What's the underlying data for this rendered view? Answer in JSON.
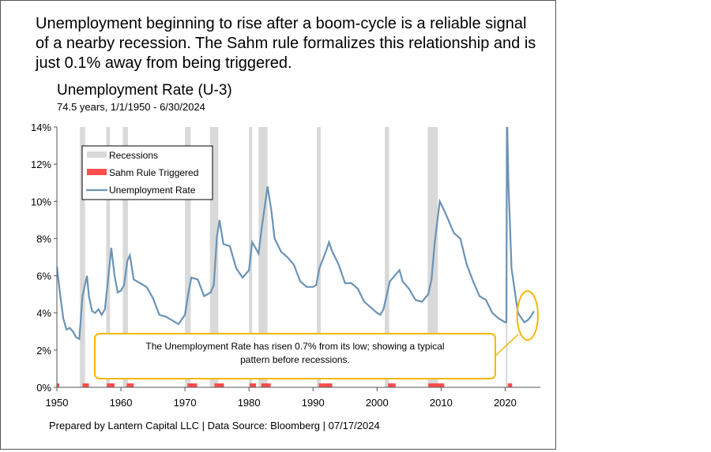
{
  "headline": "Unemployment beginning to rise after a boom-cycle is a reliable signal of a nearby recession. The Sahm rule formalizes this relationship and is just 0.1% away from being triggered.",
  "footer": "Prepared by Lantern Capital LLC | Data Source: Bloomberg | 07/17/2024",
  "colors": {
    "line": "#6b93b5",
    "recession": "#d9d9d9",
    "sahm": "#ff4d4d",
    "annotation": "#f5b800"
  },
  "chart_data": {
    "type": "line",
    "title": "Unemployment Rate (U-3)",
    "subtitle": "74.5 years, 1/1/1950 - 6/30/2024",
    "xlim": [
      1950,
      2025.5
    ],
    "ylim": [
      0,
      14
    ],
    "x_ticks": [
      "1950",
      "1960",
      "1970",
      "1980",
      "1990",
      "2000",
      "2010",
      "2020"
    ],
    "y_ticks": [
      "0%",
      "2%",
      "4%",
      "6%",
      "8%",
      "10%",
      "12%",
      "14%"
    ],
    "legend": {
      "position": "top-left",
      "items": [
        "Recessions",
        "Sahm Rule Triggered",
        "Unemployment Rate"
      ]
    },
    "series": [
      {
        "name": "Unemployment Rate",
        "points": [
          [
            1950.0,
            6.5
          ],
          [
            1950.5,
            5.0
          ],
          [
            1951,
            3.7
          ],
          [
            1951.5,
            3.1
          ],
          [
            1952,
            3.2
          ],
          [
            1952.5,
            3.0
          ],
          [
            1953,
            2.7
          ],
          [
            1953.5,
            2.6
          ],
          [
            1954,
            4.9
          ],
          [
            1954.7,
            6.0
          ],
          [
            1955,
            4.9
          ],
          [
            1955.5,
            4.1
          ],
          [
            1956,
            4.0
          ],
          [
            1956.5,
            4.2
          ],
          [
            1957,
            3.9
          ],
          [
            1957.5,
            4.2
          ],
          [
            1958,
            5.8
          ],
          [
            1958.5,
            7.5
          ],
          [
            1959,
            6.0
          ],
          [
            1959.5,
            5.1
          ],
          [
            1960,
            5.2
          ],
          [
            1960.5,
            5.5
          ],
          [
            1961,
            6.8
          ],
          [
            1961.4,
            7.1
          ],
          [
            1962,
            5.8
          ],
          [
            1963,
            5.6
          ],
          [
            1964,
            5.4
          ],
          [
            1965,
            4.8
          ],
          [
            1966,
            3.9
          ],
          [
            1967,
            3.8
          ],
          [
            1968,
            3.6
          ],
          [
            1969,
            3.4
          ],
          [
            1970,
            3.9
          ],
          [
            1970.5,
            5.0
          ],
          [
            1971,
            5.9
          ],
          [
            1972,
            5.8
          ],
          [
            1973,
            4.9
          ],
          [
            1974,
            5.1
          ],
          [
            1974.5,
            5.5
          ],
          [
            1975,
            8.1
          ],
          [
            1975.4,
            9.0
          ],
          [
            1976,
            7.7
          ],
          [
            1977,
            7.6
          ],
          [
            1978,
            6.4
          ],
          [
            1979,
            5.9
          ],
          [
            1980,
            6.3
          ],
          [
            1980.5,
            7.8
          ],
          [
            1981,
            7.5
          ],
          [
            1981.5,
            7.2
          ],
          [
            1982,
            8.6
          ],
          [
            1982.9,
            10.8
          ],
          [
            1983.5,
            9.5
          ],
          [
            1984,
            8.0
          ],
          [
            1985,
            7.3
          ],
          [
            1986,
            7.0
          ],
          [
            1987,
            6.6
          ],
          [
            1988,
            5.7
          ],
          [
            1989,
            5.4
          ],
          [
            1990,
            5.4
          ],
          [
            1990.5,
            5.5
          ],
          [
            1991,
            6.4
          ],
          [
            1992,
            7.3
          ],
          [
            1992.5,
            7.8
          ],
          [
            1993,
            7.3
          ],
          [
            1994,
            6.6
          ],
          [
            1995,
            5.6
          ],
          [
            1996,
            5.6
          ],
          [
            1997,
            5.3
          ],
          [
            1998,
            4.6
          ],
          [
            1999,
            4.3
          ],
          [
            2000,
            4.0
          ],
          [
            2000.5,
            3.9
          ],
          [
            2001,
            4.2
          ],
          [
            2002,
            5.7
          ],
          [
            2003.5,
            6.3
          ],
          [
            2004,
            5.7
          ],
          [
            2005,
            5.3
          ],
          [
            2006,
            4.7
          ],
          [
            2007,
            4.6
          ],
          [
            2008,
            5.0
          ],
          [
            2008.5,
            5.8
          ],
          [
            2009,
            7.8
          ],
          [
            2009.8,
            10.0
          ],
          [
            2010.5,
            9.5
          ],
          [
            2011,
            9.1
          ],
          [
            2012,
            8.3
          ],
          [
            2013,
            8.0
          ],
          [
            2014,
            6.6
          ],
          [
            2015,
            5.7
          ],
          [
            2016,
            4.9
          ],
          [
            2017,
            4.7
          ],
          [
            2018,
            4.0
          ],
          [
            2019,
            3.7
          ],
          [
            2020.0,
            3.5
          ],
          [
            2020.2,
            3.5
          ],
          [
            2020.3,
            14.8
          ],
          [
            2020.5,
            11.1
          ],
          [
            2021,
            6.4
          ],
          [
            2022,
            4.0
          ],
          [
            2023,
            3.5
          ],
          [
            2023.5,
            3.6
          ],
          [
            2024,
            3.8
          ],
          [
            2024.5,
            4.1
          ]
        ]
      }
    ],
    "recessions": [
      [
        1953.6,
        1954.4
      ],
      [
        1957.7,
        1958.3
      ],
      [
        1960.3,
        1961.1
      ],
      [
        1970.0,
        1970.9
      ],
      [
        1973.9,
        1975.2
      ],
      [
        1980.0,
        1980.5
      ],
      [
        1981.5,
        1982.9
      ],
      [
        1990.6,
        1991.2
      ],
      [
        2001.2,
        2001.9
      ],
      [
        2007.9,
        2009.5
      ],
      [
        2020.1,
        2020.3
      ]
    ],
    "sahm_triggered": [
      [
        1950.0,
        1950.2
      ],
      [
        1954.0,
        1955.0
      ],
      [
        1957.8,
        1959.0
      ],
      [
        1960.9,
        1962.0
      ],
      [
        1970.4,
        1971.9
      ],
      [
        1974.6,
        1976.1
      ],
      [
        1980.1,
        1981.1
      ],
      [
        1981.9,
        1983.4
      ],
      [
        1990.9,
        1993.0
      ],
      [
        2001.7,
        2002.9
      ],
      [
        2008.0,
        2010.5
      ],
      [
        2020.4,
        2021.1
      ]
    ],
    "annotation": {
      "text": "The Unemployment Rate has risen 0.7% from its low; showing a typical pattern before recessions.",
      "target_x": [
        2022,
        2025
      ]
    }
  }
}
